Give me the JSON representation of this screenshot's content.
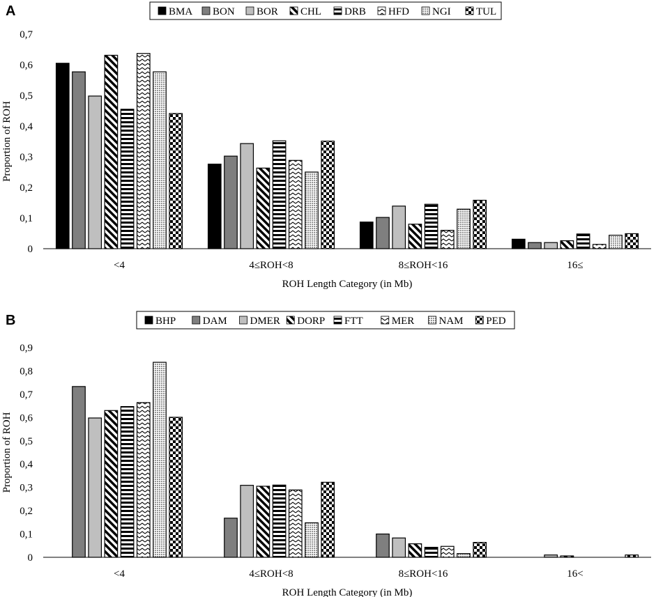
{
  "chart_data": [
    {
      "panel_label": "A",
      "type": "bar",
      "categories": [
        "<4",
        "4≤ROH<8",
        "8≤ROH<16",
        "16≤"
      ],
      "series": [
        {
          "name": "BMA",
          "pattern": "solid-black",
          "values": [
            0.605,
            0.276,
            0.087,
            0.031
          ]
        },
        {
          "name": "BON",
          "pattern": "solid-darkgray",
          "values": [
            0.577,
            0.302,
            0.102,
            0.02
          ]
        },
        {
          "name": "BOR",
          "pattern": "solid-lightgray",
          "values": [
            0.498,
            0.343,
            0.139,
            0.02
          ]
        },
        {
          "name": "CHL",
          "pattern": "diagonal-stripes",
          "values": [
            0.631,
            0.263,
            0.08,
            0.026
          ]
        },
        {
          "name": "DRB",
          "pattern": "horizontal-stripes",
          "values": [
            0.455,
            0.352,
            0.145,
            0.048
          ]
        },
        {
          "name": "HFD",
          "pattern": "zigzag",
          "values": [
            0.637,
            0.288,
            0.06,
            0.014
          ]
        },
        {
          "name": "NGI",
          "pattern": "dots",
          "values": [
            0.577,
            0.25,
            0.129,
            0.044
          ]
        },
        {
          "name": "TUL",
          "pattern": "checker",
          "values": [
            0.441,
            0.351,
            0.158,
            0.049
          ]
        }
      ],
      "xlabel": "ROH Length Category (in Mb)",
      "ylabel": "Proportion of ROH",
      "ylim": [
        0,
        0.7
      ],
      "yticks": [
        0,
        0.1,
        0.2,
        0.3,
        0.4,
        0.5,
        0.6,
        0.7
      ],
      "ytick_labels": [
        "0",
        "0,1",
        "0,2",
        "0,3",
        "0,4",
        "0,5",
        "0,6",
        "0,7"
      ],
      "legend_position": "top-center"
    },
    {
      "panel_label": "B",
      "type": "bar",
      "categories": [
        "<4",
        "4≤ROH<8",
        "8≤ROH<16",
        "16<"
      ],
      "series": [
        {
          "name": "BHP",
          "pattern": "solid-black",
          "values": [
            0,
            0,
            0,
            0
          ]
        },
        {
          "name": "DAM",
          "pattern": "solid-darkgray",
          "values": [
            0.733,
            0.168,
            0.1,
            0
          ]
        },
        {
          "name": "DMER",
          "pattern": "solid-lightgray",
          "values": [
            0.598,
            0.309,
            0.083,
            0.01
          ]
        },
        {
          "name": "DORP",
          "pattern": "diagonal-stripes",
          "values": [
            0.63,
            0.305,
            0.058,
            0.006
          ]
        },
        {
          "name": "FTT",
          "pattern": "horizontal-stripes",
          "values": [
            0.647,
            0.31,
            0.043,
            0
          ]
        },
        {
          "name": "MER",
          "pattern": "zigzag",
          "values": [
            0.664,
            0.289,
            0.047,
            0
          ]
        },
        {
          "name": "NAM",
          "pattern": "dots",
          "values": [
            0.837,
            0.148,
            0.016,
            0
          ]
        },
        {
          "name": "PED",
          "pattern": "checker",
          "values": [
            0.601,
            0.322,
            0.064,
            0.01
          ]
        }
      ],
      "xlabel": "ROH Length Category (in Mb)",
      "ylabel": "Proportion of ROH",
      "ylim": [
        0,
        0.9
      ],
      "yticks": [
        0,
        0.1,
        0.2,
        0.3,
        0.4,
        0.5,
        0.6,
        0.7,
        0.8,
        0.9
      ],
      "ytick_labels": [
        "0",
        "0,1",
        "0,2",
        "0,3",
        "0,4",
        "0,5",
        "0,6",
        "0,7",
        "0,8",
        "0,9"
      ],
      "legend_position": "top-center"
    }
  ]
}
